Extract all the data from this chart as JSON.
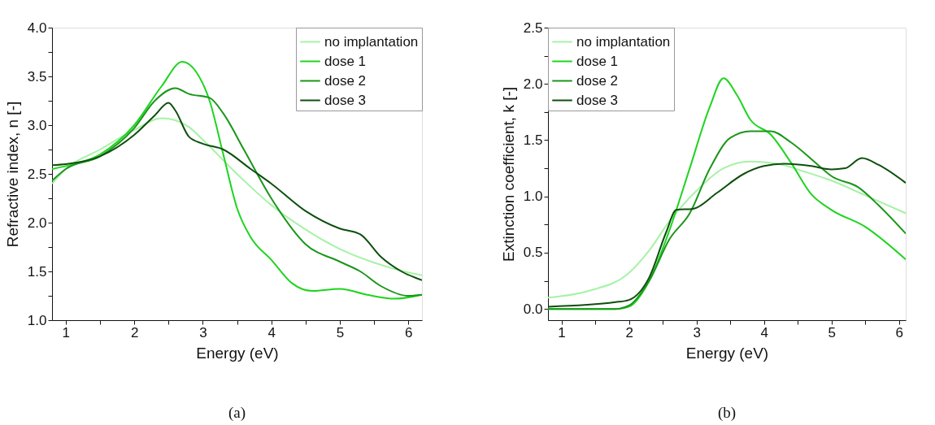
{
  "chart_data": [
    {
      "type": "line",
      "xlabel": "Energy (eV)",
      "ylabel": "Refractive index, n [-]",
      "annotations": [
        "(a)"
      ],
      "legend": "top right",
      "grid": false,
      "line_style": "solid",
      "marker": "none",
      "xlim": [
        0.8,
        6.2
      ],
      "ylim": [
        1.0,
        4.0
      ],
      "xticks": [
        1,
        {
          "value": 1.5,
          "label": null
        },
        2,
        {
          "value": 2.5,
          "label": null
        },
        3,
        {
          "value": 3.5,
          "label": null
        },
        4,
        {
          "value": 4.5,
          "label": null
        },
        5,
        {
          "value": 5.5,
          "label": null
        },
        6
      ],
      "yticks": [
        {
          "value": 1.0,
          "label": "1.0"
        },
        {
          "value": 1.25,
          "label": null
        },
        1.5,
        {
          "value": 1.75,
          "label": null
        },
        {
          "value": 2.0,
          "label": "2.0"
        },
        {
          "value": 2.25,
          "label": null
        },
        2.5,
        {
          "value": 2.75,
          "label": null
        },
        {
          "value": 3.0,
          "label": "3.0"
        },
        {
          "value": 3.25,
          "label": null
        },
        3.5,
        {
          "value": 3.75,
          "label": null
        },
        {
          "value": 4.0,
          "label": "4.0"
        }
      ],
      "series": [
        {
          "name": "no implantation",
          "color": "#a6f2a6",
          "x": [
            0.8,
            1.0,
            1.5,
            2.0,
            2.4,
            2.6,
            2.8,
            3.0,
            3.5,
            4.0,
            4.5,
            5.0,
            5.5,
            6.0,
            6.2
          ],
          "values": [
            2.4,
            2.55,
            2.75,
            2.95,
            3.07,
            3.05,
            2.98,
            2.85,
            2.5,
            2.18,
            1.93,
            1.73,
            1.59,
            1.49,
            1.46
          ]
        },
        {
          "name": "dose 1",
          "color": "#1ed41e",
          "x": [
            0.8,
            1.0,
            1.5,
            2.0,
            2.4,
            2.7,
            2.9,
            3.1,
            3.3,
            3.5,
            3.7,
            4.0,
            4.3,
            4.6,
            5.0,
            5.4,
            5.8,
            6.2
          ],
          "values": [
            2.55,
            2.58,
            2.7,
            3.0,
            3.4,
            3.65,
            3.55,
            3.25,
            2.7,
            2.15,
            1.85,
            1.62,
            1.38,
            1.3,
            1.32,
            1.26,
            1.22,
            1.26
          ]
        },
        {
          "name": "dose 2",
          "color": "#1a961a",
          "x": [
            0.8,
            1.0,
            1.5,
            2.0,
            2.3,
            2.6,
            2.8,
            3.1,
            3.3,
            3.6,
            4.0,
            4.5,
            5.0,
            5.3,
            5.6,
            6.0,
            6.2
          ],
          "values": [
            2.43,
            2.55,
            2.68,
            2.97,
            3.25,
            3.38,
            3.32,
            3.28,
            3.12,
            2.75,
            2.25,
            1.78,
            1.6,
            1.5,
            1.35,
            1.25,
            1.26
          ]
        },
        {
          "name": "dose 3",
          "color": "#0d4f0d",
          "x": [
            0.8,
            1.0,
            1.5,
            2.0,
            2.3,
            2.5,
            2.6,
            2.8,
            3.0,
            3.3,
            3.7,
            4.0,
            4.5,
            5.0,
            5.3,
            5.6,
            5.9,
            6.2
          ],
          "values": [
            2.59,
            2.6,
            2.68,
            2.9,
            3.1,
            3.23,
            3.15,
            2.88,
            2.81,
            2.75,
            2.55,
            2.4,
            2.12,
            1.94,
            1.88,
            1.65,
            1.5,
            1.41
          ]
        }
      ]
    },
    {
      "type": "line",
      "xlabel": "Energy (eV)",
      "ylabel": "Extinction coefficient, k [-]",
      "annotations": [
        "(b)"
      ],
      "legend": "top left",
      "grid": false,
      "line_style": "solid",
      "marker": "none",
      "xlim": [
        0.8,
        6.1
      ],
      "ylim": [
        -0.1,
        2.5
      ],
      "xticks": [
        1,
        {
          "value": 1.5,
          "label": null
        },
        2,
        {
          "value": 2.5,
          "label": null
        },
        3,
        {
          "value": 3.5,
          "label": null
        },
        4,
        {
          "value": 4.5,
          "label": null
        },
        5,
        {
          "value": 5.5,
          "label": null
        },
        6
      ],
      "yticks": [
        {
          "value": 0.0,
          "label": "0.0"
        },
        {
          "value": 0.25,
          "label": null
        },
        0.5,
        {
          "value": 0.75,
          "label": null
        },
        {
          "value": 1.0,
          "label": "1.0"
        },
        {
          "value": 1.25,
          "label": null
        },
        1.5,
        {
          "value": 1.75,
          "label": null
        },
        {
          "value": 2.0,
          "label": "2.0"
        },
        {
          "value": 2.25,
          "label": null
        },
        2.5
      ],
      "series": [
        {
          "name": "no implantation",
          "color": "#a6f2a6",
          "x": [
            0.8,
            1.4,
            2.0,
            2.3,
            2.6,
            3.0,
            3.4,
            3.8,
            4.2,
            4.6,
            5.0,
            5.5,
            6.1
          ],
          "values": [
            0.1,
            0.16,
            0.32,
            0.52,
            0.78,
            1.05,
            1.25,
            1.31,
            1.29,
            1.22,
            1.14,
            1.01,
            0.85
          ]
        },
        {
          "name": "dose 1",
          "color": "#1ed41e",
          "x": [
            0.8,
            1.8,
            2.0,
            2.3,
            2.6,
            2.9,
            3.2,
            3.4,
            3.6,
            3.8,
            4.1,
            4.4,
            4.7,
            5.0,
            5.5,
            6.1
          ],
          "values": [
            0.0,
            0.0,
            0.02,
            0.25,
            0.7,
            1.25,
            1.8,
            2.05,
            1.9,
            1.68,
            1.55,
            1.3,
            1.02,
            0.88,
            0.73,
            0.44
          ]
        },
        {
          "name": "dose 2",
          "color": "#1a961a",
          "x": [
            0.8,
            1.8,
            2.0,
            2.3,
            2.6,
            2.9,
            3.2,
            3.5,
            3.8,
            4.1,
            4.4,
            4.8,
            5.0,
            5.4,
            5.7,
            6.1
          ],
          "values": [
            0.0,
            0.0,
            0.03,
            0.25,
            0.62,
            0.85,
            1.25,
            1.52,
            1.58,
            1.58,
            1.48,
            1.28,
            1.18,
            1.08,
            0.92,
            0.67
          ]
        },
        {
          "name": "dose 3",
          "color": "#0d4f0d",
          "x": [
            0.8,
            1.8,
            2.0,
            2.3,
            2.55,
            2.7,
            2.95,
            3.3,
            3.7,
            4.0,
            4.3,
            4.7,
            5.0,
            5.2,
            5.45,
            5.7,
            6.1
          ],
          "values": [
            0.02,
            0.06,
            0.08,
            0.28,
            0.68,
            0.88,
            0.89,
            1.03,
            1.2,
            1.27,
            1.29,
            1.27,
            1.24,
            1.25,
            1.34,
            1.28,
            1.12
          ]
        }
      ]
    }
  ]
}
